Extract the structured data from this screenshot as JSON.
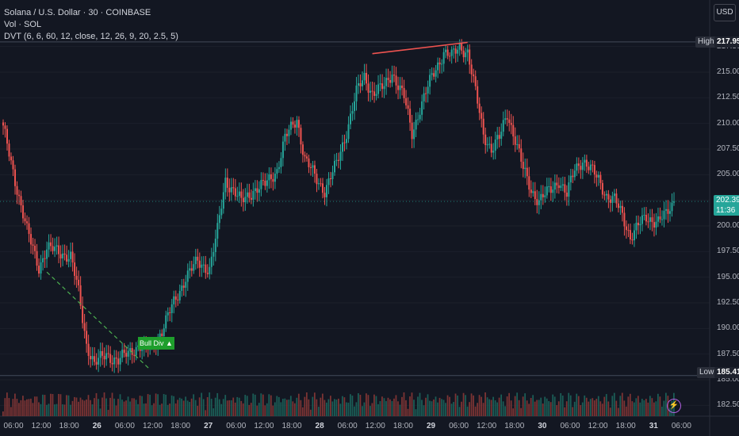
{
  "header": {
    "title": "Solana / U.S. Dollar · 30 · COINBASE",
    "vol": "Vol · SOL",
    "indicator": "DVT (6, 6, 60, 12, close, 12, 26, 9, 20, 2.5, 5)"
  },
  "currency_button": "USD",
  "price_tags": {
    "high_label": "High",
    "high_value": "217.95",
    "low_label": "Low",
    "low_value": "185.41",
    "last_value": "202.39",
    "countdown": "11:36"
  },
  "signal_label": "Bull Div ▲",
  "bolt_icon": "⚡",
  "colors": {
    "background": "#131722",
    "up": "#26a69a",
    "down": "#ef5350",
    "bull_div": "#1e9e2c",
    "bear_div": "#ef5350"
  },
  "chart_data": {
    "type": "candlestick",
    "symbol": "SOL/USD",
    "interval": "30",
    "exchange": "COINBASE",
    "y_axis": {
      "ticks": [
        "217.50",
        "215.00",
        "212.50",
        "210.00",
        "207.50",
        "205.00",
        "202.50",
        "200.00",
        "197.50",
        "195.00",
        "192.50",
        "190.00",
        "187.50",
        "185.00",
        "182.50"
      ],
      "range": [
        181.5,
        218.8
      ]
    },
    "x_axis": {
      "ticks": [
        {
          "label": "06:00",
          "bold": false
        },
        {
          "label": "12:00",
          "bold": false
        },
        {
          "label": "18:00",
          "bold": false
        },
        {
          "label": "26",
          "bold": true
        },
        {
          "label": "06:00",
          "bold": false
        },
        {
          "label": "12:00",
          "bold": false
        },
        {
          "label": "18:00",
          "bold": false
        },
        {
          "label": "27",
          "bold": true
        },
        {
          "label": "06:00",
          "bold": false
        },
        {
          "label": "12:00",
          "bold": false
        },
        {
          "label": "18:00",
          "bold": false
        },
        {
          "label": "28",
          "bold": true
        },
        {
          "label": "06:00",
          "bold": false
        },
        {
          "label": "12:00",
          "bold": false
        },
        {
          "label": "18:00",
          "bold": false
        },
        {
          "label": "29",
          "bold": true
        },
        {
          "label": "06:00",
          "bold": false
        },
        {
          "label": "12:00",
          "bold": false
        },
        {
          "label": "18:00",
          "bold": false
        },
        {
          "label": "30",
          "bold": true
        },
        {
          "label": "06:00",
          "bold": false
        },
        {
          "label": "12:00",
          "bold": false
        },
        {
          "label": "18:00",
          "bold": false
        },
        {
          "label": "31",
          "bold": true
        },
        {
          "label": "06:00",
          "bold": false
        }
      ]
    },
    "session_high": 217.95,
    "session_low": 185.41,
    "last_price": 202.39,
    "close_path": [
      {
        "bar": 0,
        "close": 209.5
      },
      {
        "bar": 6,
        "close": 204.5
      },
      {
        "bar": 12,
        "close": 199.5
      },
      {
        "bar": 18,
        "close": 196.0
      },
      {
        "bar": 22,
        "close": 197.8
      },
      {
        "bar": 28,
        "close": 197.5
      },
      {
        "bar": 34,
        "close": 197.0
      },
      {
        "bar": 38,
        "close": 193.5
      },
      {
        "bar": 42,
        "close": 188.5
      },
      {
        "bar": 46,
        "close": 186.5
      },
      {
        "bar": 52,
        "close": 187.5
      },
      {
        "bar": 58,
        "close": 186.8
      },
      {
        "bar": 64,
        "close": 187.8
      },
      {
        "bar": 68,
        "close": 188.3
      },
      {
        "bar": 74,
        "close": 188.0
      },
      {
        "bar": 80,
        "close": 189.8
      },
      {
        "bar": 86,
        "close": 192.5
      },
      {
        "bar": 92,
        "close": 195.0
      },
      {
        "bar": 98,
        "close": 196.5
      },
      {
        "bar": 104,
        "close": 195.8
      },
      {
        "bar": 108,
        "close": 199.5
      },
      {
        "bar": 112,
        "close": 204.5
      },
      {
        "bar": 116,
        "close": 203.5
      },
      {
        "bar": 120,
        "close": 202.3
      },
      {
        "bar": 126,
        "close": 203.5
      },
      {
        "bar": 132,
        "close": 204.0
      },
      {
        "bar": 138,
        "close": 205.5
      },
      {
        "bar": 142,
        "close": 208.5
      },
      {
        "bar": 148,
        "close": 210.5
      },
      {
        "bar": 152,
        "close": 206.5
      },
      {
        "bar": 158,
        "close": 204.5
      },
      {
        "bar": 162,
        "close": 203.5
      },
      {
        "bar": 168,
        "close": 206.0
      },
      {
        "bar": 172,
        "close": 208.5
      },
      {
        "bar": 178,
        "close": 213.0
      },
      {
        "bar": 182,
        "close": 214.5
      },
      {
        "bar": 186,
        "close": 213.0
      },
      {
        "bar": 192,
        "close": 213.5
      },
      {
        "bar": 196,
        "close": 215.0
      },
      {
        "bar": 202,
        "close": 212.5
      },
      {
        "bar": 206,
        "close": 209.0
      },
      {
        "bar": 210,
        "close": 211.5
      },
      {
        "bar": 216,
        "close": 214.5
      },
      {
        "bar": 222,
        "close": 217.0
      },
      {
        "bar": 226,
        "close": 216.5
      },
      {
        "bar": 230,
        "close": 217.5
      },
      {
        "bar": 234,
        "close": 217.0
      },
      {
        "bar": 238,
        "close": 213.0
      },
      {
        "bar": 242,
        "close": 209.0
      },
      {
        "bar": 246,
        "close": 207.5
      },
      {
        "bar": 250,
        "close": 208.5
      },
      {
        "bar": 254,
        "close": 211.0
      },
      {
        "bar": 258,
        "close": 208.5
      },
      {
        "bar": 262,
        "close": 205.5
      },
      {
        "bar": 266,
        "close": 203.5
      },
      {
        "bar": 270,
        "close": 202.5
      },
      {
        "bar": 276,
        "close": 203.5
      },
      {
        "bar": 280,
        "close": 204.5
      },
      {
        "bar": 284,
        "close": 203.0
      },
      {
        "bar": 288,
        "close": 205.5
      },
      {
        "bar": 292,
        "close": 206.5
      },
      {
        "bar": 296,
        "close": 205.5
      },
      {
        "bar": 300,
        "close": 204.5
      },
      {
        "bar": 304,
        "close": 203.0
      },
      {
        "bar": 308,
        "close": 202.5
      },
      {
        "bar": 312,
        "close": 201.0
      },
      {
        "bar": 316,
        "close": 199.0
      },
      {
        "bar": 320,
        "close": 200.0
      },
      {
        "bar": 324,
        "close": 200.8
      },
      {
        "bar": 330,
        "close": 200.5
      },
      {
        "bar": 334,
        "close": 201.0
      },
      {
        "bar": 338,
        "close": 202.39
      }
    ],
    "bars_total": 339,
    "annotations": [
      {
        "type": "bullish_divergence",
        "from": {
          "bar": 22,
          "price": 195.5
        },
        "to": {
          "bar": 74,
          "price": 186.0
        },
        "label": "Bull Div ▲"
      },
      {
        "type": "bearish_divergence",
        "from": {
          "bar": 186,
          "price": 216.8
        },
        "to": {
          "bar": 234,
          "price": 217.9
        }
      }
    ]
  }
}
